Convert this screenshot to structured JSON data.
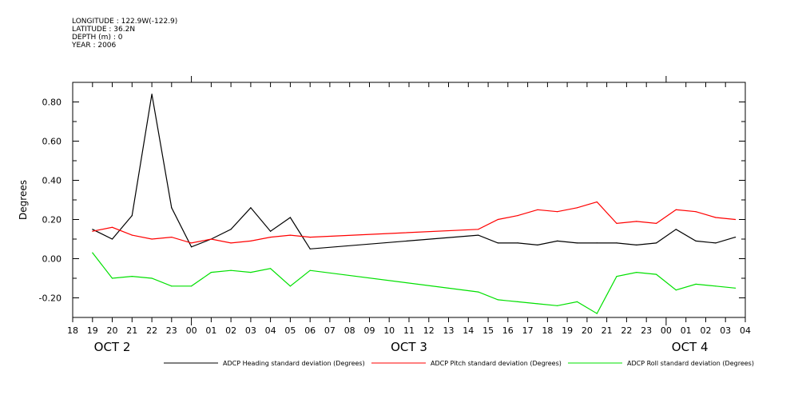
{
  "meta": {
    "longitude": "LONGITUDE : 122.9W(-122.9)",
    "latitude": "LATITUDE : 36.2N",
    "depth": "DEPTH (m) : 0",
    "year": "YEAR : 2006"
  },
  "chart_data": {
    "type": "line",
    "ylabel": "Degrees",
    "ylim": [
      -0.3,
      0.9
    ],
    "yticks": [
      -0.2,
      0.0,
      0.2,
      0.4,
      0.6,
      0.8
    ],
    "ytick_labels": [
      "-0.20",
      "0.00",
      "0.20",
      "0.40",
      "0.60",
      "0.80"
    ],
    "xlim": [
      18,
      52
    ],
    "xticks": [
      18,
      19,
      20,
      21,
      22,
      23,
      24,
      25,
      26,
      27,
      28,
      29,
      30,
      31,
      32,
      33,
      34,
      35,
      36,
      37,
      38,
      39,
      40,
      41,
      42,
      43,
      44,
      45,
      46,
      47,
      48,
      49,
      50,
      51,
      52
    ],
    "xtick_labels": [
      "18",
      "19",
      "20",
      "21",
      "22",
      "23",
      "00",
      "01",
      "02",
      "03",
      "04",
      "05",
      "06",
      "07",
      "08",
      "09",
      "10",
      "11",
      "12",
      "13",
      "14",
      "15",
      "16",
      "17",
      "18",
      "19",
      "20",
      "21",
      "22",
      "23",
      "00",
      "01",
      "02",
      "03",
      "04"
    ],
    "day_labels": [
      {
        "x": 20,
        "label": "OCT  2"
      },
      {
        "x": 35,
        "label": "OCT  3"
      },
      {
        "x": 49.2,
        "label": "OCT  4"
      }
    ],
    "grid": false,
    "legend_position": "bottom",
    "series": [
      {
        "name": "ADCP Heading standard deviation (Degrees)",
        "color": "#000000",
        "x": [
          19,
          20,
          21,
          22,
          23,
          24,
          25,
          26,
          27,
          28,
          29,
          30,
          38.5,
          39.5,
          40.5,
          41.5,
          42.5,
          43.5,
          44.5,
          45.5,
          46.5,
          47.5,
          48.5,
          49.5,
          50.5,
          51.5
        ],
        "y": [
          0.15,
          0.1,
          0.22,
          0.84,
          0.26,
          0.06,
          0.1,
          0.15,
          0.26,
          0.14,
          0.21,
          0.05,
          0.12,
          0.08,
          0.08,
          0.07,
          0.09,
          0.08,
          0.08,
          0.08,
          0.07,
          0.08,
          0.15,
          0.09,
          0.08,
          0.11
        ]
      },
      {
        "name": "ADCP Pitch standard deviation (Degrees)",
        "color": "#ff0000",
        "x": [
          19,
          20,
          21,
          22,
          23,
          24,
          25,
          26,
          27,
          28,
          29,
          30,
          38.5,
          39.5,
          40.5,
          41.5,
          42.5,
          43.5,
          44.5,
          45.5,
          46.5,
          47.5,
          48.5,
          49.5,
          50.5,
          51.5
        ],
        "y": [
          0.14,
          0.16,
          0.12,
          0.1,
          0.11,
          0.08,
          0.1,
          0.08,
          0.09,
          0.11,
          0.12,
          0.11,
          0.15,
          0.2,
          0.22,
          0.25,
          0.24,
          0.26,
          0.29,
          0.18,
          0.19,
          0.18,
          0.25,
          0.24,
          0.21,
          0.2
        ]
      },
      {
        "name": "ADCP Roll standard deviation (Degrees)",
        "color": "#00e000",
        "x": [
          19,
          20,
          21,
          22,
          23,
          24,
          25,
          26,
          27,
          28,
          29,
          30,
          38.5,
          39.5,
          40.5,
          41.5,
          42.5,
          43.5,
          44.5,
          45.5,
          46.5,
          47.5,
          48.5,
          49.5,
          50.5,
          51.5
        ],
        "y": [
          0.03,
          -0.1,
          -0.09,
          -0.1,
          -0.14,
          -0.14,
          -0.07,
          -0.06,
          -0.07,
          -0.05,
          -0.14,
          -0.06,
          -0.17,
          -0.21,
          -0.22,
          -0.23,
          -0.24,
          -0.22,
          -0.28,
          -0.09,
          -0.07,
          -0.08,
          -0.16,
          -0.13,
          -0.14,
          -0.15
        ]
      }
    ]
  }
}
